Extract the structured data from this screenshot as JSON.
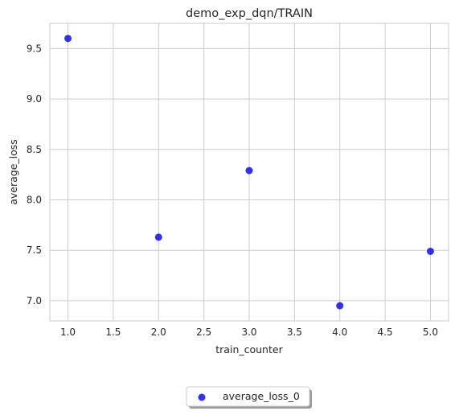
{
  "chart_data": {
    "type": "scatter",
    "title": "demo_exp_dqn/TRAIN",
    "xlabel": "train_counter",
    "ylabel": "average_loss",
    "xlim": [
      0.8,
      5.2
    ],
    "ylim": [
      6.8,
      9.75
    ],
    "x_ticks": [
      1.0,
      1.5,
      2.0,
      2.5,
      3.0,
      3.5,
      4.0,
      4.5,
      5.0
    ],
    "y_ticks": [
      7.0,
      7.5,
      8.0,
      8.5,
      9.0,
      9.5
    ],
    "x_tick_labels": [
      "1.0",
      "1.5",
      "2.0",
      "2.5",
      "3.0",
      "3.5",
      "4.0",
      "4.5",
      "5.0"
    ],
    "y_tick_labels": [
      "7.0",
      "7.5",
      "8.0",
      "8.5",
      "9.0",
      "9.5"
    ],
    "grid": true,
    "legend_position": "bottom-center",
    "series": [
      {
        "name": "average_loss_0",
        "color": "#0000e6",
        "points": [
          {
            "x": 1.0,
            "y": 9.6
          },
          {
            "x": 2.0,
            "y": 7.63
          },
          {
            "x": 3.0,
            "y": 8.29
          },
          {
            "x": 4.0,
            "y": 6.95
          },
          {
            "x": 5.0,
            "y": 7.49
          }
        ]
      }
    ]
  }
}
